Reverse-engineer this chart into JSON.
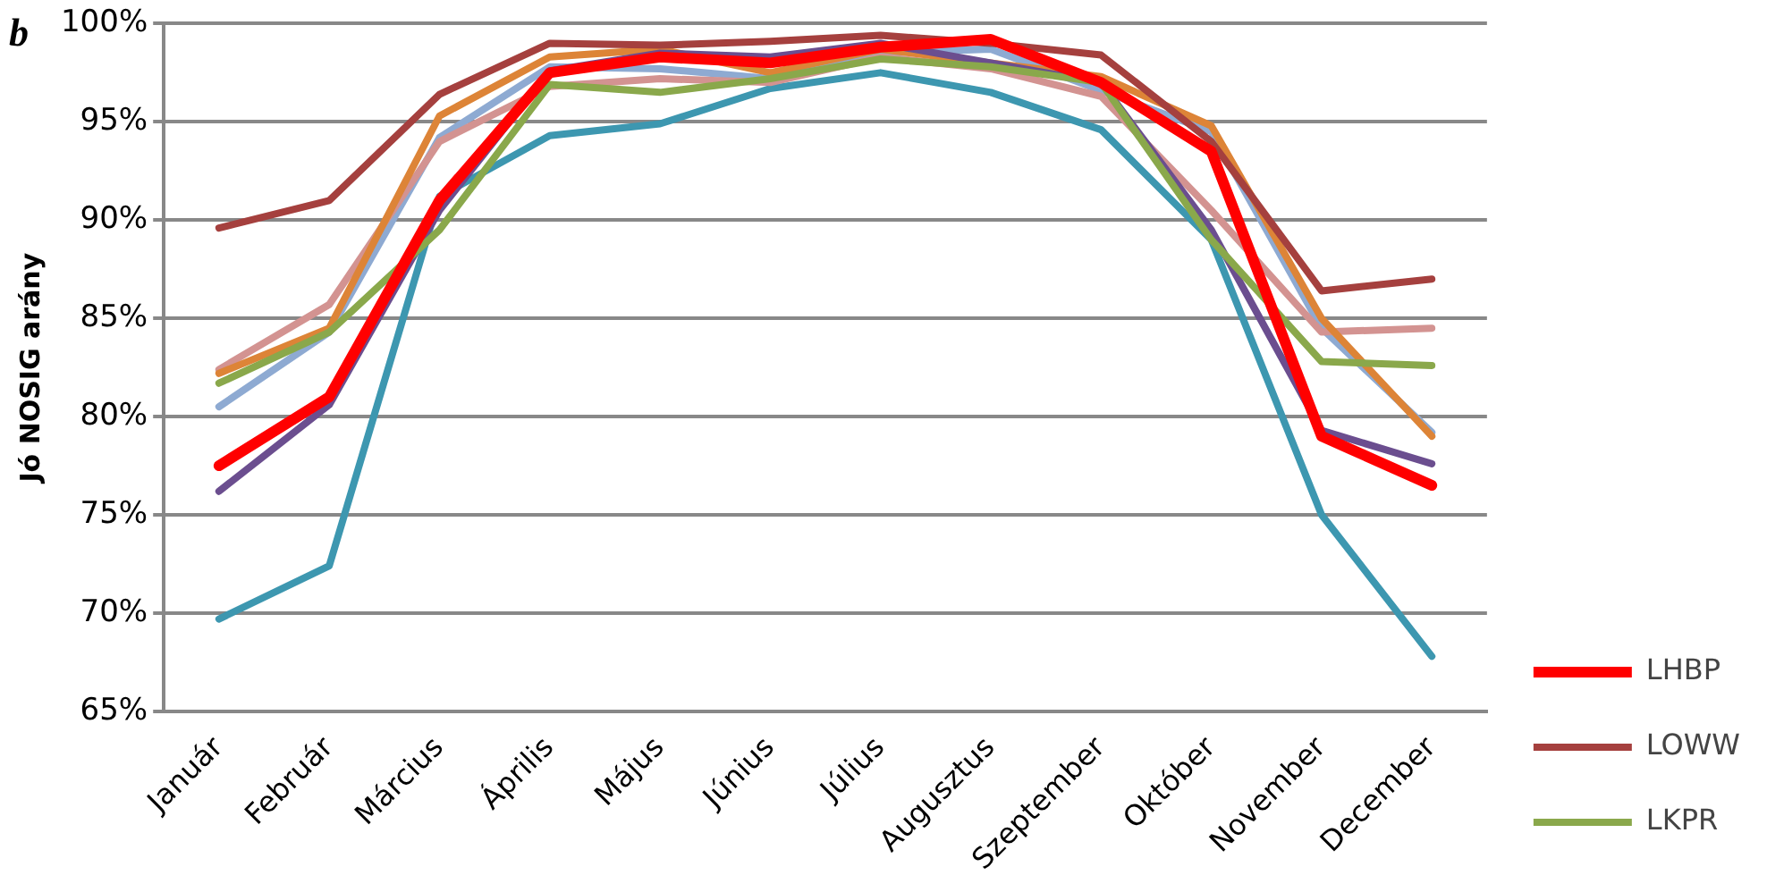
{
  "chart_data": {
    "type": "line",
    "title": "b",
    "ylabel": "Jó NOSIG arány",
    "categories": [
      "Január",
      "Február",
      "Március",
      "Április",
      "Május",
      "Június",
      "Július",
      "Augusztus",
      "Szeptember",
      "Október",
      "November",
      "December"
    ],
    "series": [
      {
        "name": "LHBP",
        "color": "#ff0000",
        "values": [
          77.5,
          81,
          91,
          97.5,
          98.3,
          98,
          98.8,
          99.2,
          97,
          93.5,
          79,
          76.5
        ]
      },
      {
        "name": "LOWW",
        "color": "#a5403e",
        "values": [
          89.6,
          91,
          96.4,
          99,
          98.9,
          99.1,
          99.4,
          99,
          98.4,
          94,
          86.4,
          87
        ]
      },
      {
        "name": "LKPR",
        "color": "#8aa84b",
        "values": [
          81.7,
          84.3,
          89.5,
          96.9,
          96.5,
          97.2,
          98.2,
          97.8,
          97,
          89,
          82.8,
          82.6
        ]
      },
      {
        "color": "#6b4e8f",
        "values": [
          76.2,
          80.6,
          90.5,
          97.6,
          98.5,
          98.3,
          99,
          98,
          97,
          89.5,
          79.3,
          77.6
        ]
      },
      {
        "color": "#dd8437",
        "values": [
          82.2,
          84.5,
          95.3,
          98.3,
          98.7,
          97.5,
          98.7,
          98,
          97.3,
          94.8,
          85,
          79
        ]
      },
      {
        "color": "#d39391",
        "values": [
          82.4,
          85.7,
          94,
          96.8,
          97.2,
          97,
          98.3,
          97.7,
          96.3,
          90.5,
          84.3,
          84.5
        ]
      },
      {
        "color": "#8eaad2",
        "values": [
          80.5,
          84.3,
          94.2,
          97.8,
          97.7,
          97.2,
          98.5,
          98.7,
          96.6,
          94.5,
          84.5,
          79.2
        ]
      },
      {
        "color": "#3d97b0",
        "values": [
          69.7,
          72.4,
          91.2,
          94.3,
          94.9,
          96.7,
          97.5,
          96.5,
          94.6,
          89,
          75,
          67.8
        ]
      }
    ],
    "ylim": [
      65,
      100
    ],
    "yticks": [
      {
        "value": 65,
        "label": "65%"
      },
      {
        "value": 70,
        "label": "70%"
      },
      {
        "value": 75,
        "label": "75%"
      },
      {
        "value": 80,
        "label": "80%"
      },
      {
        "value": 85,
        "label": "85%"
      },
      {
        "value": 90,
        "label": "90%"
      },
      {
        "value": 95,
        "label": "95%"
      },
      {
        "value": 100,
        "label": "100%"
      }
    ],
    "grid": "y",
    "legend": "bottom right",
    "marker": "none",
    "line_style": "solid"
  }
}
